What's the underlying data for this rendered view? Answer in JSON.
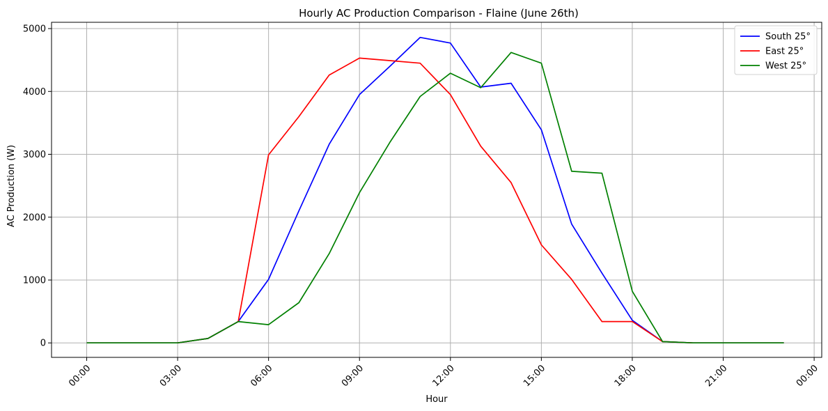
{
  "chart_data": {
    "type": "line",
    "title": "Hourly AC Production Comparison - Flaine (June 26th)",
    "xlabel": "Hour",
    "ylabel": "AC Production (W)",
    "x": [
      "00:00",
      "01:00",
      "02:00",
      "03:00",
      "04:00",
      "05:00",
      "06:00",
      "07:00",
      "08:00",
      "09:00",
      "10:00",
      "11:00",
      "12:00",
      "13:00",
      "14:00",
      "15:00",
      "16:00",
      "17:00",
      "18:00",
      "19:00",
      "20:00",
      "21:00",
      "22:00",
      "23:00"
    ],
    "x_ticks": [
      "00:00",
      "03:00",
      "06:00",
      "09:00",
      "12:00",
      "15:00",
      "18:00",
      "21:00",
      "00:00"
    ],
    "y_ticks": [
      "0",
      "1000",
      "2000",
      "3000",
      "4000",
      "5000"
    ],
    "ylim": [
      -230,
      5100
    ],
    "grid": true,
    "legend_position": "top-right",
    "series": [
      {
        "name": "South 25°",
        "color": "#0000ff",
        "values": [
          0,
          0,
          0,
          0,
          70,
          340,
          1010,
          2100,
          3160,
          3950,
          4400,
          4860,
          4770,
          4070,
          4130,
          3390,
          1890,
          1110,
          360,
          20,
          0,
          0,
          0,
          0
        ]
      },
      {
        "name": "East 25°",
        "color": "#ff0000",
        "values": [
          0,
          0,
          0,
          0,
          70,
          340,
          2990,
          3600,
          4260,
          4530,
          4490,
          4450,
          3950,
          3130,
          2550,
          1560,
          1010,
          340,
          340,
          20,
          0,
          0,
          0,
          0
        ]
      },
      {
        "name": "West 25°",
        "color": "#008000",
        "values": [
          0,
          0,
          0,
          0,
          70,
          340,
          290,
          640,
          1420,
          2390,
          3190,
          3920,
          4290,
          4060,
          4620,
          4450,
          2730,
          2700,
          820,
          20,
          0,
          0,
          0,
          0
        ]
      }
    ]
  }
}
